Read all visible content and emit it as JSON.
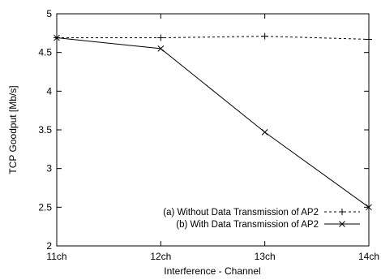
{
  "chart_data": {
    "type": "line",
    "title": "",
    "xlabel": "Interference - Channel",
    "ylabel": "TCP Goodput [Mb/s]",
    "categories": [
      "11ch",
      "12ch",
      "13ch",
      "14ch"
    ],
    "ylim": [
      2,
      5
    ],
    "yticks": [
      "2",
      "2.5",
      "3",
      "3.5",
      "4",
      "4.5",
      "5"
    ],
    "grid": false,
    "legend_position": "bottom-right",
    "series": [
      {
        "name": "(a) Without Data Transmission of AP2",
        "values": [
          4.69,
          4.69,
          4.71,
          4.67
        ],
        "line_style": "dashed",
        "marker": "plus",
        "color": "#000000"
      },
      {
        "name": "(b) With Data Transmission of AP2",
        "values": [
          4.69,
          4.55,
          3.47,
          2.5
        ],
        "line_style": "solid",
        "marker": "cross",
        "color": "#000000"
      }
    ]
  }
}
